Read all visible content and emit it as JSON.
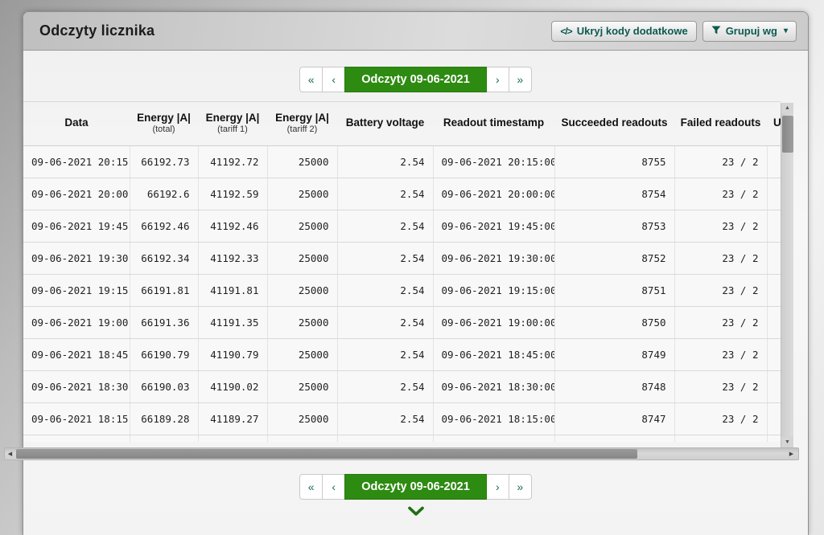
{
  "window": {
    "title": "Odczyty licznika"
  },
  "toolbar": {
    "hide_codes_button": {
      "icon": "code-icon",
      "icon_glyph": "</>",
      "label": "Ukryj kody dodatkowe"
    },
    "group_by_button": {
      "icon": "filter-icon",
      "label": "Grupuj wg"
    }
  },
  "pagination": {
    "first": "«",
    "prev": "‹",
    "current": "Odczyty 09-06-2021",
    "next": "›",
    "last": "»"
  },
  "table": {
    "columns": [
      {
        "label": "Data",
        "sub": ""
      },
      {
        "label": "Energy |A|",
        "sub": "(total)"
      },
      {
        "label": "Energy |A|",
        "sub": "(tariff 1)"
      },
      {
        "label": "Energy |A|",
        "sub": "(tariff 2)"
      },
      {
        "label": "Battery voltage",
        "sub": ""
      },
      {
        "label": "Readout timestamp",
        "sub": ""
      },
      {
        "label": "Succeeded readouts",
        "sub": ""
      },
      {
        "label": "Failed readouts",
        "sub": ""
      },
      {
        "label": "U",
        "sub": ""
      }
    ],
    "rows": [
      [
        "09-06-2021 20:15",
        "66192.73",
        "41192.72",
        "25000",
        "2.54",
        "09-06-2021 20:15:00",
        "8755",
        "23 / 2",
        ""
      ],
      [
        "09-06-2021 20:00",
        "66192.6",
        "41192.59",
        "25000",
        "2.54",
        "09-06-2021 20:00:00",
        "8754",
        "23 / 2",
        ""
      ],
      [
        "09-06-2021 19:45",
        "66192.46",
        "41192.46",
        "25000",
        "2.54",
        "09-06-2021 19:45:00",
        "8753",
        "23 / 2",
        ""
      ],
      [
        "09-06-2021 19:30",
        "66192.34",
        "41192.33",
        "25000",
        "2.54",
        "09-06-2021 19:30:00",
        "8752",
        "23 / 2",
        ""
      ],
      [
        "09-06-2021 19:15",
        "66191.81",
        "41191.81",
        "25000",
        "2.54",
        "09-06-2021 19:15:00",
        "8751",
        "23 / 2",
        ""
      ],
      [
        "09-06-2021 19:00",
        "66191.36",
        "41191.35",
        "25000",
        "2.54",
        "09-06-2021 19:00:00",
        "8750",
        "23 / 2",
        ""
      ],
      [
        "09-06-2021 18:45",
        "66190.79",
        "41190.79",
        "25000",
        "2.54",
        "09-06-2021 18:45:00",
        "8749",
        "23 / 2",
        ""
      ],
      [
        "09-06-2021 18:30",
        "66190.03",
        "41190.02",
        "25000",
        "2.54",
        "09-06-2021 18:30:00",
        "8748",
        "23 / 2",
        ""
      ],
      [
        "09-06-2021 18:15",
        "66189.28",
        "41189.27",
        "25000",
        "2.54",
        "09-06-2021 18:15:00",
        "8747",
        "23 / 2",
        ""
      ]
    ]
  },
  "icons": {
    "code": "</>",
    "caret_down": "▾",
    "scroll_up": "▲",
    "scroll_down": "▼",
    "scroll_left": "◀",
    "scroll_right": "▶",
    "filter": "funnel",
    "expand": "chevron-down"
  },
  "colors": {
    "accent_green": "#2e8b12",
    "accent_green_border": "#27790e",
    "button_text_teal": "#0c5a50",
    "pager_arrow_teal": "#17695e",
    "chevron_green": "#1e7012"
  }
}
